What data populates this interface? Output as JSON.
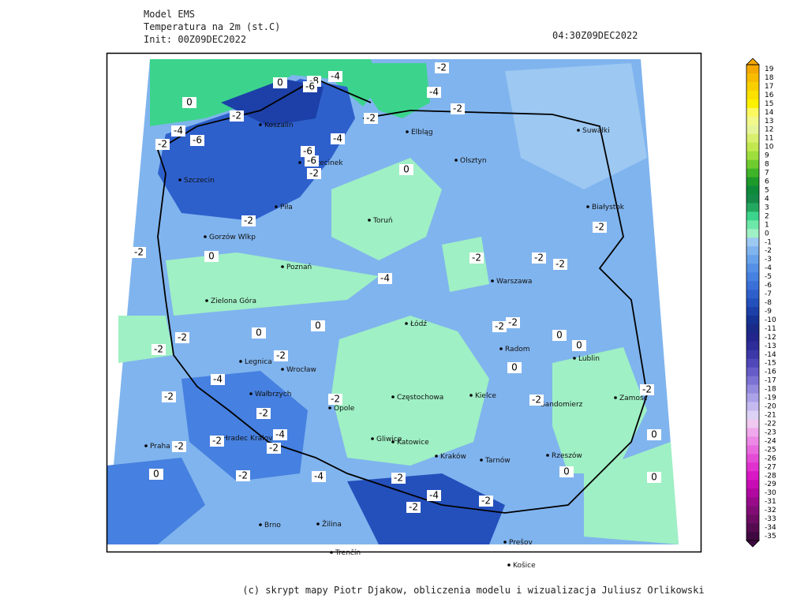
{
  "header": {
    "model": "Model EMS",
    "field": "Temperatura na 2m (st.C)",
    "init": "Init: 00Z09DEC2022",
    "valid": "04:30Z09DEC2022"
  },
  "footer": "(c) skrypt mapy Piotr Djakow, obliczenia modelu i wizualizacja Juliusz Orlikowski",
  "colorbar": [
    {
      "value": 19,
      "color": "#f5a800"
    },
    {
      "value": 18,
      "color": "#f7bc00"
    },
    {
      "value": 17,
      "color": "#f9cf00"
    },
    {
      "value": 16,
      "color": "#fbe000"
    },
    {
      "value": 15,
      "color": "#fdf000"
    },
    {
      "value": 14,
      "color": "#fbf860"
    },
    {
      "value": 13,
      "color": "#f2f88a"
    },
    {
      "value": 12,
      "color": "#e6f59a"
    },
    {
      "value": 11,
      "color": "#d8f06e"
    },
    {
      "value": 10,
      "color": "#c2e850"
    },
    {
      "value": 9,
      "color": "#9ede3c"
    },
    {
      "value": 8,
      "color": "#6fcc2e"
    },
    {
      "value": 7,
      "color": "#3fb428"
    },
    {
      "value": 6,
      "color": "#1e9a2a"
    },
    {
      "value": 5,
      "color": "#0f8a3a"
    },
    {
      "value": 4,
      "color": "#168a48"
    },
    {
      "value": 3,
      "color": "#24a860"
    },
    {
      "value": 2,
      "color": "#3cd48c"
    },
    {
      "value": 1,
      "color": "#6ee8a8"
    },
    {
      "value": 0,
      "color": "#9ff0c4"
    },
    {
      "value": -1,
      "color": "#9cc8f2"
    },
    {
      "value": -2,
      "color": "#80b4ee"
    },
    {
      "value": -3,
      "color": "#68a2ea"
    },
    {
      "value": -4,
      "color": "#5690e6"
    },
    {
      "value": -5,
      "color": "#4680e0"
    },
    {
      "value": -6,
      "color": "#3a70d8"
    },
    {
      "value": -7,
      "color": "#2e60cc"
    },
    {
      "value": -8,
      "color": "#2450bc"
    },
    {
      "value": -9,
      "color": "#1c40a8"
    },
    {
      "value": -10,
      "color": "#163294"
    },
    {
      "value": -11,
      "color": "#1a2a88"
    },
    {
      "value": -12,
      "color": "#22268c"
    },
    {
      "value": -13,
      "color": "#2e2c98"
    },
    {
      "value": -14,
      "color": "#3c38a8"
    },
    {
      "value": -15,
      "color": "#5048b8"
    },
    {
      "value": -16,
      "color": "#665cc8"
    },
    {
      "value": -17,
      "color": "#7c72d4"
    },
    {
      "value": -18,
      "color": "#948ade"
    },
    {
      "value": -19,
      "color": "#aca2e8"
    },
    {
      "value": -20,
      "color": "#c4baf0"
    },
    {
      "value": -21,
      "color": "#dcd2f6"
    },
    {
      "value": -22,
      "color": "#f0c8f0"
    },
    {
      "value": -23,
      "color": "#f0a8ec"
    },
    {
      "value": -24,
      "color": "#ec88e6"
    },
    {
      "value": -25,
      "color": "#e86ade"
    },
    {
      "value": -26,
      "color": "#e44cd6"
    },
    {
      "value": -27,
      "color": "#e030ce"
    },
    {
      "value": -28,
      "color": "#d818c4"
    },
    {
      "value": -29,
      "color": "#c80cb4"
    },
    {
      "value": -30,
      "color": "#b008a0"
    },
    {
      "value": -31,
      "color": "#980a8a"
    },
    {
      "value": -32,
      "color": "#820c76"
    },
    {
      "value": -33,
      "color": "#6c0c62"
    },
    {
      "value": -34,
      "color": "#560a50"
    },
    {
      "value": -35,
      "color": "#400840"
    }
  ],
  "cities": [
    "Elbląg",
    "Olsztyn",
    "Suwałki",
    "Koszalin",
    "Szczecinek",
    "Szczecin",
    "Piła",
    "Toruń",
    "Białystok",
    "Gorzów Wlkp",
    "Poznań",
    "Warszawa",
    "Zielona Góra",
    "Łódź",
    "Radom",
    "Lublin",
    "Legnica",
    "Wrocław",
    "Wałbrzych",
    "Opole",
    "Częstochowa",
    "Kielce",
    "Sandomierz",
    "Zamość",
    "Gliwice",
    "Katowice",
    "Kraków",
    "Tarnów",
    "Rzeszów",
    "Praha",
    "Hradec Králové",
    "Brno",
    "Žilina",
    "Trenčín",
    "Prešov",
    "Košice"
  ],
  "contour_labels": [
    0,
    -8,
    -4,
    -6,
    -2,
    -4,
    0,
    -2,
    -2,
    -4,
    -2,
    -6,
    -6,
    -4,
    -6,
    -2,
    0,
    -2,
    -2,
    -2,
    0,
    -2,
    -2,
    -2,
    -2,
    -4,
    0,
    -2,
    -2,
    -2,
    -4,
    -2,
    -2,
    -2,
    -4,
    -2,
    -2,
    -2,
    0,
    -2,
    -4,
    -2,
    -4,
    -2,
    -2,
    0,
    -2,
    -2,
    0,
    0,
    0,
    -2,
    -2,
    0,
    0,
    0
  ]
}
